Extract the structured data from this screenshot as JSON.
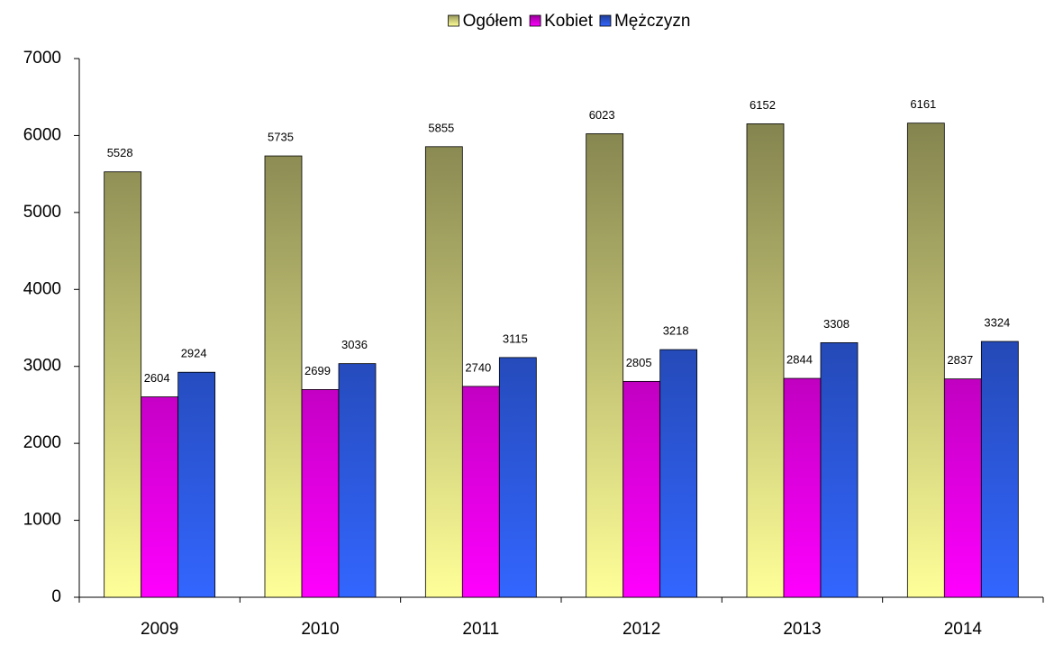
{
  "chart_data": {
    "type": "bar",
    "categories": [
      "2009",
      "2010",
      "2011",
      "2012",
      "2013",
      "2014"
    ],
    "series": [
      {
        "name": "Ogółem",
        "color": "#ffff99",
        "values": [
          5528,
          5735,
          5855,
          6023,
          6152,
          6161
        ]
      },
      {
        "name": "Kobiet",
        "color": "#ff00ff",
        "values": [
          2604,
          2699,
          2740,
          2805,
          2844,
          2837
        ]
      },
      {
        "name": "Mężczyzn",
        "color": "#3366ff",
        "values": [
          2924,
          3036,
          3115,
          3218,
          3308,
          3324
        ]
      }
    ],
    "ylim": [
      0,
      7000
    ],
    "yticks": [
      0,
      1000,
      2000,
      3000,
      4000,
      5000,
      6000,
      7000
    ],
    "grid": false,
    "legend": "top",
    "data_labels": true
  }
}
